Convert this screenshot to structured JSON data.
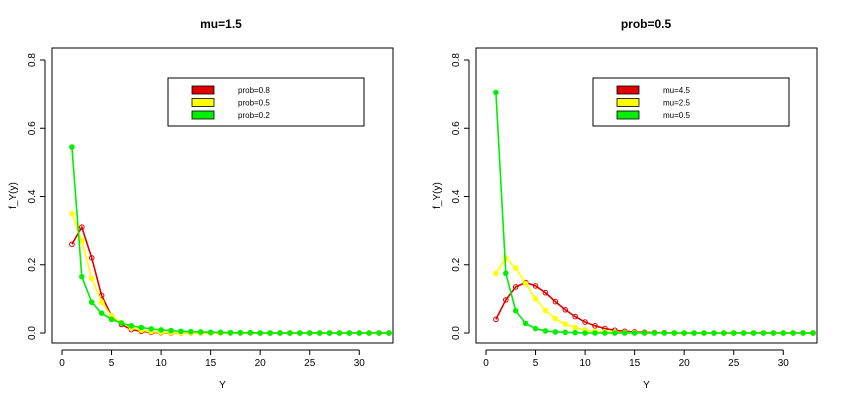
{
  "chart_data": [
    {
      "type": "line",
      "title": "mu=1.5",
      "xlabel": "Y",
      "ylabel": "f_Y(y)",
      "xlim": [
        0,
        33
      ],
      "ylim": [
        0,
        0.8
      ],
      "x_ticks": [
        0,
        5,
        10,
        15,
        20,
        25,
        30
      ],
      "y_ticks": [
        0.0,
        0.2,
        0.4,
        0.6,
        0.8
      ],
      "x_tick_labels": [
        "0",
        "5",
        "10",
        "15",
        "20",
        "25",
        "30"
      ],
      "y_tick_labels": [
        "0.0",
        "0.2",
        "0.4",
        "0.6",
        "0.8"
      ],
      "grid": false,
      "legend_position": "top-right",
      "x": [
        1,
        2,
        3,
        4,
        5,
        6,
        7,
        8,
        9,
        10,
        11,
        12,
        13,
        14,
        15,
        16,
        17,
        18,
        19,
        20,
        21,
        22,
        23,
        24,
        25,
        26,
        27,
        28,
        29,
        30,
        31,
        32,
        33
      ],
      "series": [
        {
          "name": "prob=0.8",
          "color": "#e00000",
          "marker": "open-circle",
          "values": [
            0.26,
            0.31,
            0.22,
            0.11,
            0.05,
            0.025,
            0.01,
            0.005,
            0.002,
            0.001,
            0,
            0,
            0,
            0,
            0,
            0,
            0,
            0,
            0,
            0,
            0,
            0,
            0,
            0,
            0,
            0,
            0,
            0,
            0,
            0,
            0,
            0,
            0
          ]
        },
        {
          "name": "prob=0.5",
          "color": "#ffff00",
          "marker": "filled-circle",
          "values": [
            0.35,
            0.27,
            0.16,
            0.09,
            0.05,
            0.03,
            0.015,
            0.008,
            0.004,
            0.002,
            0.001,
            0,
            0,
            0,
            0,
            0,
            0,
            0,
            0,
            0,
            0,
            0,
            0,
            0,
            0,
            0,
            0,
            0,
            0,
            0,
            0,
            0,
            0
          ]
        },
        {
          "name": "prob=0.2",
          "color": "#00ee00",
          "marker": "filled-circle",
          "values": [
            0.545,
            0.165,
            0.09,
            0.058,
            0.04,
            0.029,
            0.021,
            0.016,
            0.012,
            0.009,
            0.007,
            0.005,
            0.004,
            0.003,
            0.002,
            0.002,
            0.001,
            0.001,
            0.001,
            0,
            0,
            0,
            0,
            0,
            0,
            0,
            0,
            0,
            0,
            0,
            0,
            0,
            0
          ]
        }
      ]
    },
    {
      "type": "line",
      "title": "prob=0.5",
      "xlabel": "Y",
      "ylabel": "f_Y(y)",
      "xlim": [
        0,
        33
      ],
      "ylim": [
        0,
        0.8
      ],
      "x_ticks": [
        0,
        5,
        10,
        15,
        20,
        25,
        30
      ],
      "y_ticks": [
        0.0,
        0.2,
        0.4,
        0.6,
        0.8
      ],
      "x_tick_labels": [
        "0",
        "5",
        "10",
        "15",
        "20",
        "25",
        "30"
      ],
      "y_tick_labels": [
        "0.0",
        "0.2",
        "0.4",
        "0.6",
        "0.8"
      ],
      "grid": false,
      "legend_position": "top-right",
      "x": [
        1,
        2,
        3,
        4,
        5,
        6,
        7,
        8,
        9,
        10,
        11,
        12,
        13,
        14,
        15,
        16,
        17,
        18,
        19,
        20,
        21,
        22,
        23,
        24,
        25,
        26,
        27,
        28,
        29,
        30,
        31,
        32,
        33
      ],
      "series": [
        {
          "name": "mu=4.5",
          "color": "#e00000",
          "marker": "open-circle",
          "values": [
            0.04,
            0.097,
            0.135,
            0.148,
            0.138,
            0.118,
            0.092,
            0.068,
            0.048,
            0.032,
            0.021,
            0.013,
            0.008,
            0.005,
            0.003,
            0.002,
            0.001,
            0.001,
            0,
            0,
            0,
            0,
            0,
            0,
            0,
            0,
            0,
            0,
            0,
            0,
            0,
            0,
            0
          ]
        },
        {
          "name": "mu=2.5",
          "color": "#ffff00",
          "marker": "filled-circle",
          "values": [
            0.175,
            0.22,
            0.19,
            0.145,
            0.1,
            0.066,
            0.042,
            0.026,
            0.016,
            0.009,
            0.005,
            0.003,
            0.002,
            0.001,
            0.001,
            0,
            0,
            0,
            0,
            0,
            0,
            0,
            0,
            0,
            0,
            0,
            0,
            0,
            0,
            0,
            0,
            0,
            0
          ]
        },
        {
          "name": "mu=0.5",
          "color": "#00ee00",
          "marker": "filled-circle",
          "values": [
            0.705,
            0.175,
            0.065,
            0.028,
            0.013,
            0.006,
            0.003,
            0.002,
            0.001,
            0,
            0,
            0,
            0,
            0,
            0,
            0,
            0,
            0,
            0,
            0,
            0,
            0,
            0,
            0,
            0,
            0,
            0,
            0,
            0,
            0,
            0,
            0,
            0
          ]
        }
      ]
    }
  ]
}
